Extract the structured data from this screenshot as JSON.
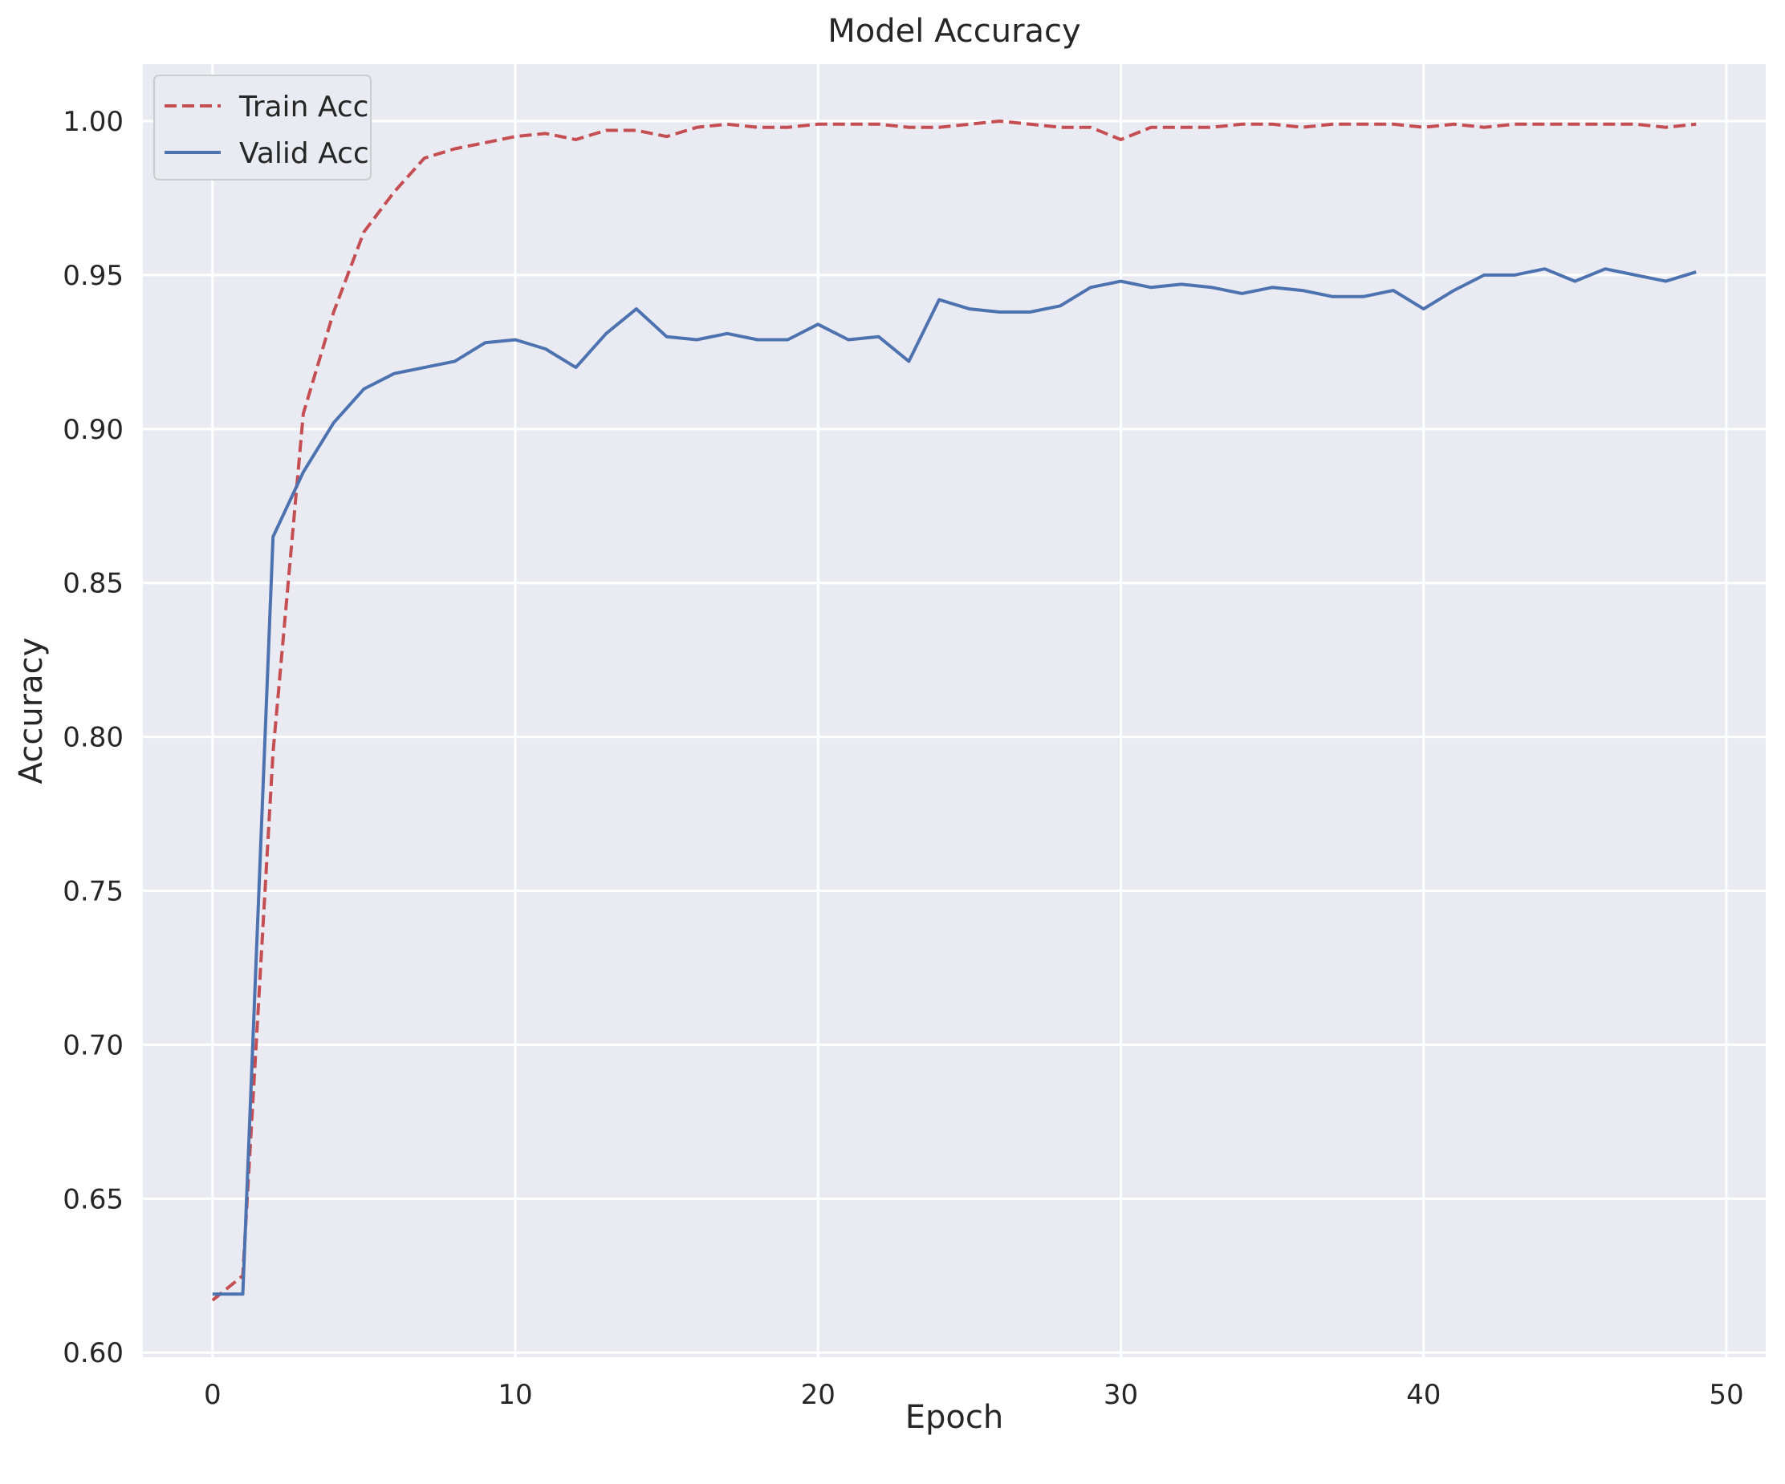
{
  "chart_data": {
    "type": "line",
    "title": "Model Accuracy",
    "xlabel": "Epoch",
    "ylabel": "Accuracy",
    "xlim": [
      -2.3,
      51.3
    ],
    "ylim": [
      0.5985,
      1.0185
    ],
    "xticks": [
      0,
      10,
      20,
      30,
      40,
      50
    ],
    "yticks": [
      0.6,
      0.65,
      0.7,
      0.75,
      0.8,
      0.85,
      0.9,
      0.95,
      1.0
    ],
    "grid": true,
    "legend_position": "top-left",
    "background": "#eaeaf2",
    "x": [
      0,
      1,
      2,
      3,
      4,
      5,
      6,
      7,
      8,
      9,
      10,
      11,
      12,
      13,
      14,
      15,
      16,
      17,
      18,
      19,
      20,
      21,
      22,
      23,
      24,
      25,
      26,
      27,
      28,
      29,
      30,
      31,
      32,
      33,
      34,
      35,
      36,
      37,
      38,
      39,
      40,
      41,
      42,
      43,
      44,
      45,
      46,
      47,
      48,
      49
    ],
    "series": [
      {
        "name": "Train Acc",
        "color": "#c44e52",
        "dash": "dashed",
        "values": [
          0.617,
          0.625,
          0.795,
          0.905,
          0.938,
          0.964,
          0.977,
          0.988,
          0.991,
          0.993,
          0.995,
          0.996,
          0.994,
          0.997,
          0.997,
          0.995,
          0.998,
          0.999,
          0.998,
          0.998,
          0.999,
          0.999,
          0.999,
          0.998,
          0.998,
          0.999,
          1.0,
          0.999,
          0.998,
          0.998,
          0.994,
          0.998,
          0.998,
          0.998,
          0.999,
          0.999,
          0.998,
          0.999,
          0.999,
          0.999,
          0.998,
          0.999,
          0.998,
          0.999,
          0.999,
          0.999,
          0.999,
          0.999,
          0.998,
          0.999
        ]
      },
      {
        "name": "Valid Acc",
        "color": "#4c72b0",
        "dash": "solid",
        "values": [
          0.619,
          0.619,
          0.865,
          0.886,
          0.902,
          0.913,
          0.918,
          0.92,
          0.922,
          0.928,
          0.929,
          0.926,
          0.92,
          0.931,
          0.939,
          0.93,
          0.929,
          0.931,
          0.929,
          0.929,
          0.934,
          0.929,
          0.93,
          0.922,
          0.942,
          0.939,
          0.938,
          0.938,
          0.94,
          0.946,
          0.948,
          0.946,
          0.947,
          0.946,
          0.944,
          0.946,
          0.945,
          0.943,
          0.943,
          0.945,
          0.939,
          0.945,
          0.95,
          0.95,
          0.952,
          0.948,
          0.952,
          0.95,
          0.948,
          0.951
        ]
      }
    ]
  }
}
